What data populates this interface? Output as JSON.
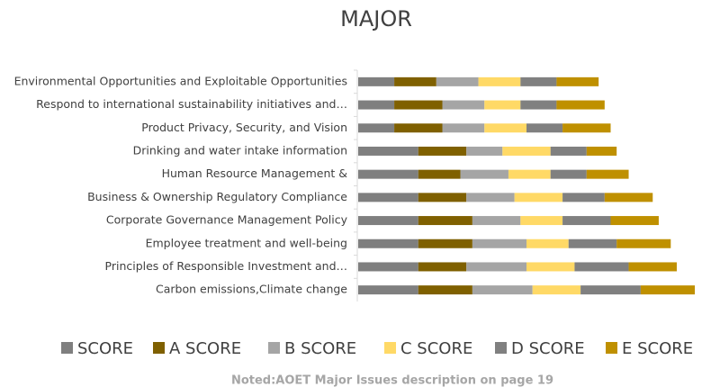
{
  "chart_data": {
    "type": "stacked-bar-horizontal",
    "title": "MAJOR",
    "note": "Noted:AOET Major Issues description on page 19",
    "categories": [
      "Environmental Opportunities and Exploitable Opportunities",
      "Respond to international sustainability initiatives and…",
      "Product Privacy, Security, and Vision",
      "Drinking and water intake information",
      "Human Resource Management &",
      "Business & Ownership Regulatory Compliance",
      "Corporate Governance Management Policy",
      "Employee treatment and well-being",
      "Principles of Responsible Investment and…",
      "Carbon emissions,Climate change"
    ],
    "series": [
      {
        "name": "SCORE",
        "color": "#7f7f7f",
        "values": [
          6,
          6,
          6,
          10,
          10,
          10,
          10,
          10,
          10,
          10
        ]
      },
      {
        "name": "A SCORE",
        "color": "#7f6000",
        "values": [
          7,
          8,
          8,
          8,
          7,
          8,
          9,
          9,
          8,
          9
        ]
      },
      {
        "name": "B SCORE",
        "color": "#a5a5a5",
        "values": [
          7,
          7,
          7,
          6,
          8,
          8,
          8,
          9,
          10,
          10
        ]
      },
      {
        "name": "C SCORE",
        "color": "#ffd966",
        "values": [
          7,
          6,
          7,
          8,
          7,
          8,
          7,
          7,
          8,
          8
        ]
      },
      {
        "name": "D SCORE",
        "color": "#808080",
        "values": [
          6,
          6,
          6,
          6,
          6,
          7,
          8,
          8,
          9,
          10
        ]
      },
      {
        "name": "E SCORE",
        "color": "#bf9000",
        "values": [
          7,
          8,
          8,
          5,
          7,
          8,
          8,
          9,
          8,
          9
        ]
      }
    ]
  }
}
